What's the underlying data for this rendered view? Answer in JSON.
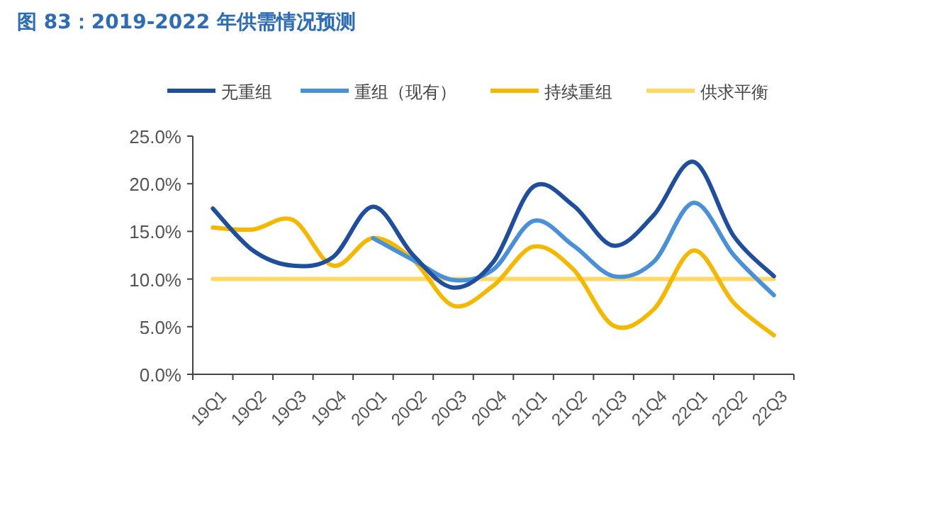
{
  "chart_data": {
    "type": "line",
    "title": "图 83：2019-2022 年供需情况预测",
    "categories": [
      "19Q1",
      "19Q2",
      "19Q3",
      "19Q4",
      "20Q1",
      "20Q2",
      "20Q3",
      "20Q4",
      "21Q1",
      "21Q2",
      "21Q3",
      "21Q4",
      "22Q1",
      "22Q2",
      "22Q3"
    ],
    "series": [
      {
        "name": "无重组",
        "color": "#1f4e9c",
        "values": [
          17.4,
          13.0,
          11.4,
          12.3,
          17.6,
          12.5,
          9.1,
          11.8,
          19.7,
          17.7,
          13.5,
          16.7,
          22.3,
          14.5,
          10.3
        ]
      },
      {
        "name": "重组（现有）",
        "color": "#4a90d9",
        "values": [
          null,
          null,
          null,
          null,
          14.3,
          12.0,
          9.9,
          11.0,
          16.1,
          13.5,
          10.3,
          11.8,
          18.0,
          12.5,
          8.3
        ]
      },
      {
        "name": "持续重组",
        "color": "#f5b800",
        "values": [
          15.4,
          15.2,
          16.2,
          11.4,
          14.3,
          12.0,
          7.2,
          9.3,
          13.4,
          11.0,
          5.1,
          6.8,
          13.0,
          7.5,
          4.1
        ]
      },
      {
        "name": "供求平衡",
        "color": "#ffd966",
        "values": [
          10,
          10,
          10,
          10,
          10,
          10,
          10,
          10,
          10,
          10,
          10,
          10,
          10,
          10,
          10
        ]
      }
    ],
    "ylim": [
      0,
      25
    ],
    "yticks": [
      {
        "value": 0,
        "label": "0.0%"
      },
      {
        "value": 5,
        "label": "5.0%"
      },
      {
        "value": 10,
        "label": "10.0%"
      },
      {
        "value": 15,
        "label": "15.0%"
      },
      {
        "value": 20,
        "label": "20.0%"
      },
      {
        "value": 25,
        "label": "25.0%"
      }
    ],
    "grid": false,
    "legend": "top",
    "marker": "none",
    "line_style": "solid"
  }
}
